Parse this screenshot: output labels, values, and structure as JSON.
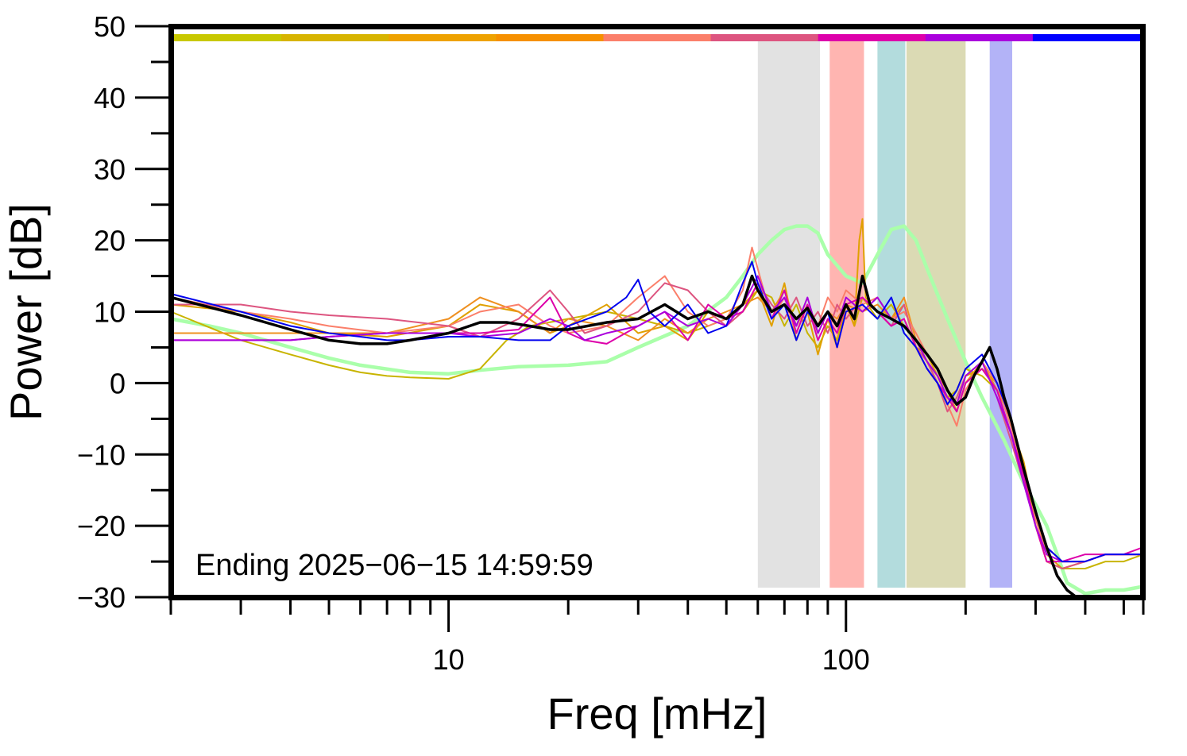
{
  "chart_data": {
    "type": "line",
    "title": "",
    "xlabel": "Freq [mHz]",
    "ylabel": "Power [dB]",
    "x_scale": "log",
    "xlim": [
      2,
      560
    ],
    "ylim": [
      -30,
      50
    ],
    "x_tick_labels": [
      {
        "value": 10,
        "label": "10"
      },
      {
        "value": 100,
        "label": "100"
      }
    ],
    "y_ticks": [
      {
        "value": 50,
        "label": "50"
      },
      {
        "value": 40,
        "label": "40"
      },
      {
        "value": 30,
        "label": "30"
      },
      {
        "value": 20,
        "label": "20"
      },
      {
        "value": 10,
        "label": "10"
      },
      {
        "value": 0,
        "label": "0"
      },
      {
        "value": -10,
        "label": "−10"
      },
      {
        "value": -20,
        "label": "−20"
      },
      {
        "value": -30,
        "label": "−30"
      }
    ],
    "grid": false,
    "legend": "none",
    "annotation": "Ending 2025−06−15 14:59:59",
    "bands": [
      {
        "name": "grey band",
        "from": 60,
        "to": 86,
        "color": "#e2e2e2"
      },
      {
        "name": "red band",
        "from": 91,
        "to": 111,
        "color": "#ffb5b1"
      },
      {
        "name": "teal band",
        "from": 120,
        "to": 141,
        "color": "#b3dcdd"
      },
      {
        "name": "olive band",
        "from": 142,
        "to": 200,
        "color": "#dbdab4"
      },
      {
        "name": "blue band",
        "from": 230,
        "to": 262,
        "color": "#b3b3f7"
      }
    ],
    "top_bar_colors": [
      "#c8c800",
      "#d7b400",
      "#eea200",
      "#f69000",
      "#fb7f6a",
      "#dd5580",
      "#dd00aa",
      "#aa00dd",
      "#0000ff"
    ],
    "series": [
      {
        "name": "",
        "color": "#aaffaa",
        "width": 4.5,
        "x": [
          2,
          2.5,
          3,
          4,
          5,
          6,
          8,
          10,
          12,
          15,
          20,
          25,
          30,
          40,
          50,
          55,
          60,
          65,
          70,
          75,
          80,
          85,
          90,
          100,
          110,
          120,
          130,
          140,
          150,
          160,
          180,
          200,
          220,
          250,
          280,
          300,
          320,
          340,
          360,
          400,
          450,
          500,
          560
        ],
        "y": [
          9,
          8,
          7,
          5,
          3.5,
          2.5,
          1.5,
          1.3,
          1.8,
          2.3,
          2.5,
          3,
          5,
          8,
          12,
          15,
          18,
          20,
          21.5,
          22,
          22,
          21,
          18,
          15,
          14,
          18,
          21.5,
          22,
          20,
          16,
          9,
          3,
          -2,
          -8,
          -14,
          -17,
          -20,
          -24,
          -28,
          -29.5,
          -29,
          -29,
          -28.5
        ]
      },
      {
        "name": "",
        "color": "#c8b400",
        "width": 2,
        "x": [
          2,
          3,
          4,
          5,
          6,
          7,
          8,
          10,
          12,
          14,
          16,
          20,
          25,
          30,
          35,
          40,
          45,
          50,
          55,
          60,
          65,
          70,
          75,
          80,
          85,
          90,
          95,
          100,
          105,
          110,
          120,
          130,
          140,
          150,
          160,
          170,
          180,
          190,
          200,
          220,
          240,
          260,
          280,
          300,
          320,
          350,
          400,
          450,
          500,
          560
        ],
        "y": [
          10,
          6,
          4,
          2.5,
          1.5,
          1,
          0.8,
          0.6,
          2,
          6,
          8,
          9,
          10,
          9,
          8,
          7,
          8,
          9,
          10,
          13,
          12,
          8,
          11,
          7,
          5,
          8,
          6,
          11,
          8,
          12,
          9,
          11,
          8,
          6,
          3,
          0,
          -2,
          -1,
          2,
          1,
          -1,
          -5,
          -12,
          -20,
          -25,
          -26,
          -26,
          -25,
          -25,
          -24
        ]
      },
      {
        "name": "",
        "color": "#e0a000",
        "width": 2,
        "x": [
          2,
          3,
          4,
          5,
          7,
          10,
          12,
          15,
          18,
          20,
          25,
          30,
          35,
          40,
          45,
          50,
          55,
          60,
          65,
          70,
          75,
          80,
          85,
          90,
          95,
          100,
          105,
          108,
          110,
          112,
          120,
          130,
          140,
          150,
          160,
          170,
          180,
          190,
          200,
          220,
          240,
          260,
          280,
          300,
          320,
          350,
          400,
          450,
          500,
          560
        ],
        "y": [
          11,
          10,
          8.5,
          7,
          6.5,
          8,
          11,
          10,
          7,
          8,
          11,
          7,
          8,
          6,
          10,
          9,
          11,
          13,
          8,
          14,
          6,
          10,
          4,
          9,
          5,
          11,
          8,
          20,
          23,
          12,
          10,
          9,
          11,
          5,
          4,
          1,
          -2,
          -3,
          1,
          2,
          0,
          -6,
          -11,
          -19,
          -24,
          -26,
          -25,
          -24,
          -24,
          -24
        ]
      },
      {
        "name": "",
        "color": "#ef9020",
        "width": 2,
        "x": [
          2,
          3,
          4,
          5,
          7,
          10,
          12,
          15,
          18,
          20,
          25,
          30,
          35,
          40,
          45,
          50,
          55,
          60,
          65,
          70,
          75,
          80,
          85,
          90,
          95,
          100,
          110,
          120,
          130,
          140,
          150,
          160,
          170,
          180,
          190,
          200,
          220,
          240,
          260,
          280,
          300,
          320,
          350,
          400,
          450,
          500,
          560
        ],
        "y": [
          7,
          7,
          7,
          7,
          7,
          9,
          12,
          10,
          7,
          9,
          8,
          6,
          9,
          7,
          9,
          10,
          11,
          12,
          10,
          13,
          8,
          11,
          7,
          10,
          9,
          11,
          10,
          11,
          9,
          12,
          6,
          3,
          1,
          -1,
          -4,
          0,
          3,
          -1,
          -5,
          -13,
          -18,
          -23,
          -25,
          -25,
          -24,
          -24,
          -24
        ]
      },
      {
        "name": "",
        "color": "#fb7f6a",
        "width": 2,
        "x": [
          2,
          3,
          4,
          5,
          7,
          10,
          12,
          15,
          18,
          20,
          25,
          30,
          35,
          40,
          45,
          50,
          55,
          58,
          60,
          65,
          70,
          75,
          80,
          85,
          90,
          95,
          100,
          110,
          120,
          130,
          140,
          150,
          160,
          170,
          180,
          190,
          200,
          220,
          240,
          260,
          280,
          300,
          320,
          350,
          400,
          450,
          500,
          560
        ],
        "y": [
          12,
          10,
          9,
          8,
          7,
          8,
          10,
          11,
          8,
          7,
          8,
          12,
          15,
          10,
          8,
          9,
          13,
          19,
          16,
          9,
          12,
          7,
          11,
          8,
          12,
          10,
          13,
          11,
          12,
          9,
          10,
          7,
          4,
          2,
          -3,
          -6,
          -1,
          3,
          0,
          -6,
          -14,
          -19,
          -24,
          -25,
          -25,
          -24,
          -24,
          -24
        ]
      },
      {
        "name": "",
        "color": "#dd5580",
        "width": 2,
        "x": [
          2,
          3,
          4,
          5,
          7,
          10,
          12,
          15,
          18,
          20,
          22,
          25,
          30,
          35,
          40,
          45,
          50,
          55,
          60,
          65,
          70,
          75,
          80,
          85,
          90,
          95,
          100,
          110,
          120,
          130,
          140,
          150,
          160,
          170,
          180,
          190,
          200,
          220,
          240,
          260,
          280,
          300,
          320,
          350,
          400,
          450,
          500,
          560
        ],
        "y": [
          11,
          11,
          10,
          9.5,
          9,
          8,
          6.5,
          9,
          13,
          10,
          7,
          8,
          10,
          14,
          13,
          10,
          8,
          10,
          14,
          11,
          9,
          12,
          8,
          10,
          7,
          11,
          9,
          12,
          10,
          8,
          11,
          5,
          3,
          0,
          -4,
          -2,
          1,
          3,
          -2,
          -8,
          -14,
          -20,
          -25,
          -26,
          -25,
          -24,
          -24,
          -24
        ]
      },
      {
        "name": "",
        "color": "#dd00aa",
        "width": 2,
        "x": [
          2,
          3,
          4,
          5,
          7,
          10,
          12,
          15,
          18,
          20,
          22,
          25,
          30,
          35,
          40,
          45,
          50,
          55,
          60,
          65,
          70,
          75,
          80,
          85,
          90,
          95,
          100,
          110,
          120,
          130,
          140,
          150,
          160,
          170,
          180,
          190,
          200,
          220,
          240,
          260,
          280,
          300,
          320,
          350,
          400,
          450,
          500,
          560
        ],
        "y": [
          6,
          6,
          6,
          6.5,
          7,
          7,
          7,
          7.5,
          12,
          7,
          6,
          5.5,
          8,
          10,
          6,
          11,
          9,
          10,
          14,
          9,
          13,
          7,
          11,
          6,
          9,
          7,
          11,
          12,
          10,
          8,
          9,
          5,
          2,
          0,
          -2,
          -4,
          0,
          2,
          -1,
          -7,
          -13,
          -20,
          -25,
          -25,
          -24,
          -24,
          -24,
          -23
        ]
      },
      {
        "name": "",
        "color": "#aa00dd",
        "width": 2,
        "x": [
          2,
          3,
          4,
          5,
          7,
          10,
          12,
          15,
          18,
          20,
          22,
          25,
          30,
          35,
          40,
          45,
          50,
          55,
          60,
          65,
          70,
          75,
          80,
          85,
          90,
          95,
          100,
          110,
          120,
          130,
          140,
          150,
          160,
          170,
          180,
          190,
          200,
          220,
          240,
          260,
          280,
          300,
          320,
          350,
          400,
          450,
          500,
          560
        ],
        "y": [
          6,
          6,
          6,
          6.5,
          7,
          7,
          6.5,
          7,
          9,
          8,
          6,
          7,
          8,
          10,
          8,
          9,
          8,
          11,
          15,
          10,
          12,
          8,
          12,
          7,
          10,
          8,
          12,
          10,
          12,
          9,
          8,
          6,
          3,
          1,
          -2,
          -3,
          1,
          3,
          -2,
          -7,
          -14,
          -20,
          -24,
          -25,
          -25,
          -24,
          -24,
          -24
        ]
      },
      {
        "name": "",
        "color": "#0000ee",
        "width": 2,
        "x": [
          2,
          3,
          4,
          5,
          6,
          7,
          8,
          10,
          12,
          15,
          18,
          20,
          25,
          28,
          30,
          32,
          35,
          40,
          45,
          50,
          55,
          58,
          60,
          65,
          70,
          75,
          80,
          85,
          90,
          95,
          100,
          110,
          120,
          130,
          140,
          150,
          160,
          170,
          180,
          190,
          200,
          220,
          240,
          260,
          280,
          300,
          320,
          350,
          400,
          450,
          500,
          560
        ],
        "y": [
          12.5,
          10,
          8,
          7,
          6.5,
          6,
          6,
          6.5,
          6.5,
          6,
          6,
          8,
          10,
          12,
          14.5,
          10,
          8,
          11,
          7,
          8,
          14,
          17,
          14,
          9,
          11,
          6,
          10,
          8,
          10,
          5,
          10,
          11,
          9,
          12,
          7,
          5,
          2,
          0,
          -3,
          -1,
          2,
          4,
          0,
          -5,
          -12,
          -18,
          -23,
          -25,
          -25,
          -24,
          -24,
          -24
        ]
      },
      {
        "name": "",
        "color": "#000000",
        "width": 3.5,
        "x": [
          2,
          3,
          4,
          5,
          6,
          7,
          8,
          10,
          12,
          14,
          16,
          18,
          20,
          25,
          30,
          35,
          40,
          45,
          50,
          55,
          58,
          60,
          65,
          70,
          75,
          80,
          85,
          90,
          95,
          100,
          105,
          110,
          115,
          120,
          130,
          140,
          150,
          160,
          170,
          180,
          190,
          200,
          210,
          220,
          230,
          240,
          250,
          260,
          280,
          300,
          320,
          340,
          360,
          380
        ],
        "y": [
          12,
          9.5,
          7.5,
          6,
          5.5,
          5.5,
          6,
          7,
          8.5,
          8.5,
          8,
          7.5,
          7.5,
          8.5,
          9,
          11,
          9,
          10,
          9,
          11,
          15,
          13,
          10,
          11,
          9,
          10.5,
          8,
          10,
          8,
          11,
          9,
          15,
          11,
          10,
          9,
          8,
          6,
          4,
          2,
          -1,
          -3,
          -2,
          1,
          3,
          5,
          2,
          -2,
          -5,
          -12,
          -18,
          -23,
          -27,
          -29,
          -30
        ]
      }
    ]
  }
}
